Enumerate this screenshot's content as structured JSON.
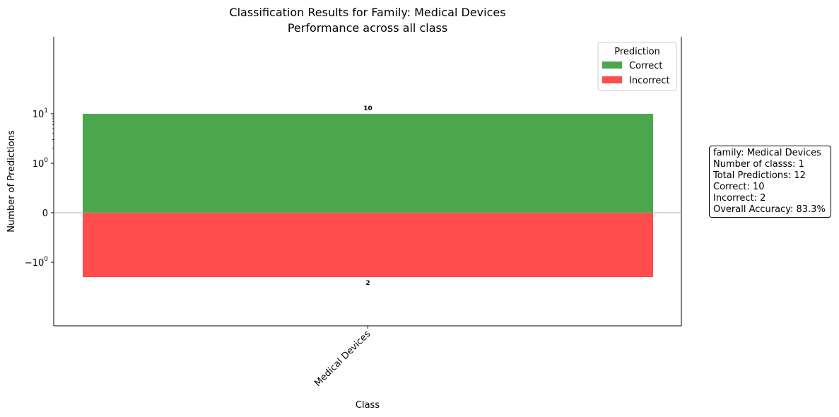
{
  "chart_data": {
    "type": "bar",
    "title": "Classification Results for Family: Medical Devices",
    "subtitle": "Performance across all class",
    "xlabel": "Class",
    "ylabel": "Number of Predictions",
    "yscale": "symlog",
    "ytick_labels": [
      "10^1",
      "10^0",
      "0",
      "−10^0"
    ],
    "categories": [
      "Medical Devices"
    ],
    "series": [
      {
        "name": "Correct",
        "values": [
          10
        ],
        "color": "#4ca64c"
      },
      {
        "name": "Incorrect",
        "values": [
          -2
        ],
        "color": "#ff4c4c"
      }
    ],
    "bar_labels": {
      "correct": "10",
      "incorrect": "2"
    },
    "legend": {
      "title": "Prediction",
      "placement": "upper right",
      "entries": [
        "Correct",
        "Incorrect"
      ]
    },
    "grid": false
  },
  "stats": {
    "lines": [
      "family: Medical Devices",
      "Number of classs: 1",
      "Total Predictions: 12",
      "Correct: 10",
      "Incorrect: 2",
      "Overall Accuracy: 83.3%"
    ]
  }
}
